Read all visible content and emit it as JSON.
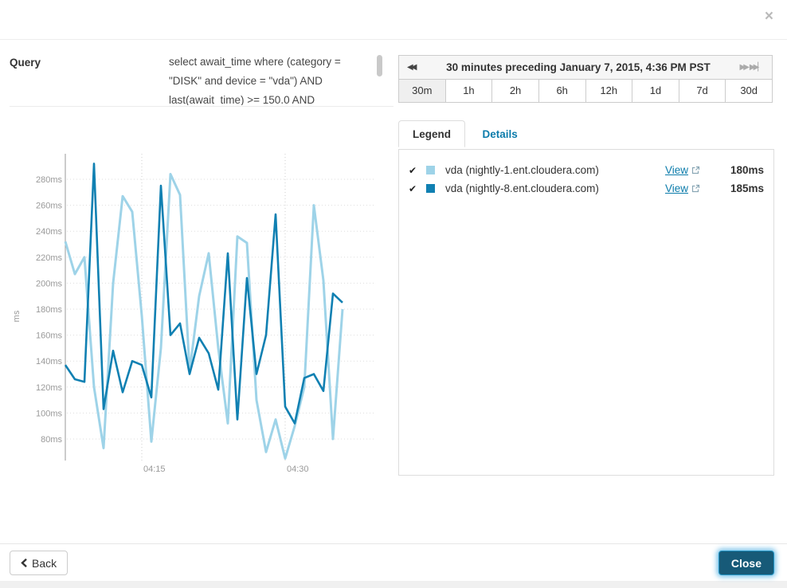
{
  "modal": {
    "close_icon": "×"
  },
  "query": {
    "label": "Query",
    "text": "select await_time where (category = \"DISK\" and device = \"vda\") AND last(await_time) >= 150.0 AND"
  },
  "time_range": {
    "title": "30 minutes preceding January 7, 2015, 4:36 PM PST",
    "buttons": [
      "30m",
      "1h",
      "2h",
      "6h",
      "12h",
      "1d",
      "7d",
      "30d"
    ],
    "selected": "30m",
    "rewind_icon": "◀◀",
    "forward_icon": "▶▶",
    "skip_icon": "▶▶"
  },
  "panel": {
    "tabs": [
      {
        "label": "Legend"
      },
      {
        "label": "Details"
      }
    ],
    "legend": {
      "rows": [
        {
          "check": "✔",
          "color": "#9ed3e8",
          "label": "vda (nightly-1.ent.cloudera.com)",
          "link": "View",
          "value": "180ms"
        },
        {
          "check": "✔",
          "color": "#1080b2",
          "label": "vda (nightly-8.ent.cloudera.com)",
          "link": "View",
          "value": "185ms"
        }
      ]
    }
  },
  "footer": {
    "back_label": "Back",
    "close_label": "Close"
  },
  "chart_data": {
    "type": "line",
    "title": "",
    "xlabel": "",
    "ylabel": "ms",
    "ylim": [
      60,
      295
    ],
    "yticks": [
      80,
      100,
      120,
      140,
      160,
      180,
      200,
      220,
      240,
      260,
      280
    ],
    "ytick_suffix": "ms",
    "x_interval_minutes": 1,
    "xticks": [
      {
        "label": "04:15",
        "index": 8
      },
      {
        "label": "04:30",
        "index": 23
      }
    ],
    "grid": true,
    "legend_position": "right-panel",
    "series": [
      {
        "name": "vda (nightly-1.ent.cloudera.com)",
        "color": "#9ed3e8",
        "values": [
          232,
          207,
          220,
          120,
          73,
          200,
          267,
          255,
          175,
          78,
          150,
          284,
          268,
          132,
          190,
          223,
          150,
          92,
          236,
          231,
          110,
          70,
          95,
          65,
          90,
          120,
          260,
          202,
          80,
          180
        ]
      },
      {
        "name": "vda (nightly-8.ent.cloudera.com)",
        "color": "#1080b2",
        "values": [
          137,
          126,
          124,
          292,
          103,
          148,
          116,
          140,
          137,
          112,
          275,
          160,
          169,
          130,
          158,
          146,
          118,
          223,
          95,
          204,
          130,
          160,
          253,
          105,
          92,
          127,
          130,
          117,
          192,
          185
        ]
      }
    ]
  }
}
